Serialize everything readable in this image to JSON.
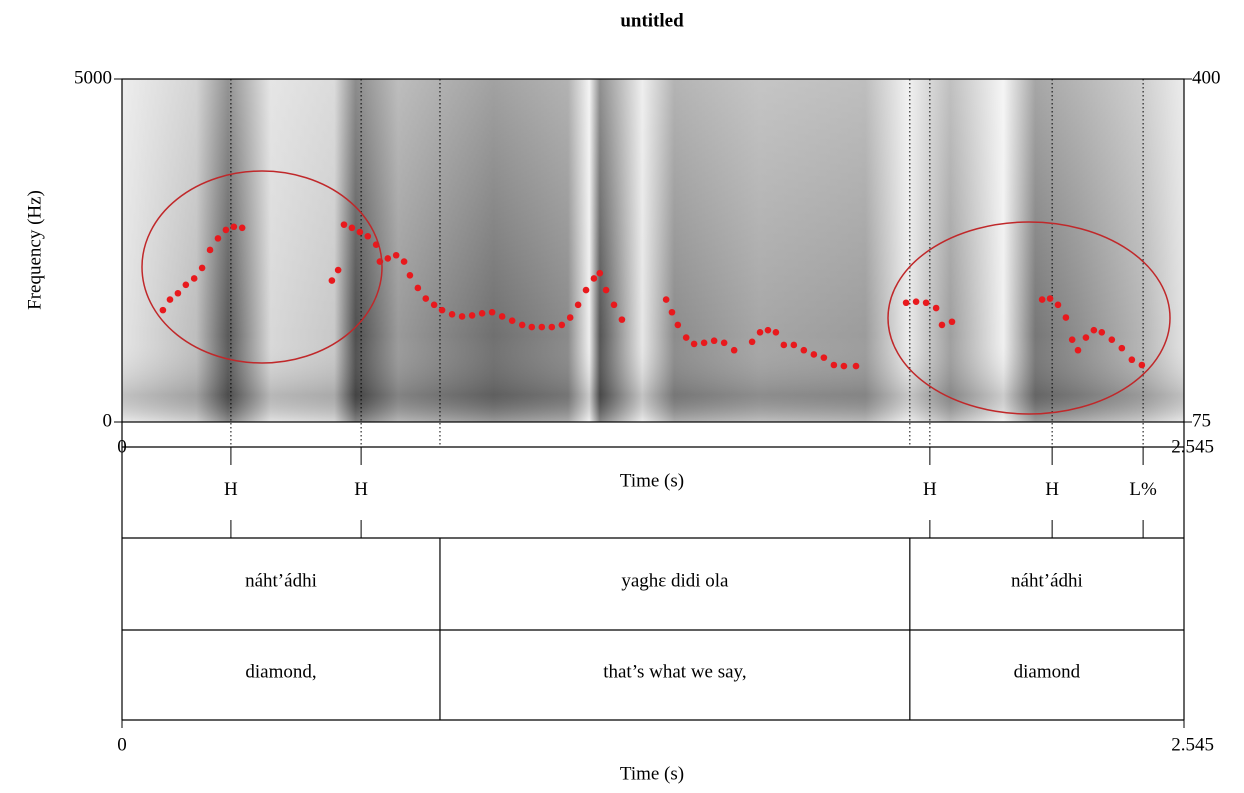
{
  "chart_data": {
    "type": "scatter",
    "title": "untitled",
    "ylabel": "Frequency (Hz)",
    "xlabel": "Time (s)",
    "xlim": [
      0,
      2.545
    ],
    "xticks": [
      0,
      2.545
    ],
    "ylim": [
      0,
      5000
    ],
    "yticks": [
      0,
      5000
    ],
    "y2lim": [
      75,
      400
    ],
    "y2ticks": [
      75,
      400
    ],
    "color": "#e8191d",
    "x": [
      0.098,
      0.115,
      0.134,
      0.153,
      0.173,
      0.192,
      0.211,
      0.23,
      0.249,
      0.268,
      0.288,
      0.503,
      0.518,
      0.532,
      0.551,
      0.57,
      0.589,
      0.609,
      0.618,
      0.637,
      0.657,
      0.676,
      0.69,
      0.709,
      0.728,
      0.748,
      0.767,
      0.791,
      0.815,
      0.839,
      0.863,
      0.887,
      0.911,
      0.935,
      0.959,
      0.982,
      1.006,
      1.03,
      1.054,
      1.074,
      1.093,
      1.112,
      1.131,
      1.145,
      1.16,
      1.179,
      1.198,
      1.304,
      1.318,
      1.332,
      1.352,
      1.371,
      1.395,
      1.419,
      1.443,
      1.467,
      1.51,
      1.529,
      1.548,
      1.567,
      1.586,
      1.61,
      1.634,
      1.658,
      1.682,
      1.706,
      1.73,
      1.759,
      1.879,
      1.903,
      1.927,
      1.951,
      1.965,
      1.989,
      2.205,
      2.224,
      2.243,
      2.262,
      2.277,
      2.291,
      2.31,
      2.329,
      2.348,
      2.372,
      2.396,
      2.42,
      2.444
    ],
    "values": [
      181,
      191,
      197,
      205,
      211,
      221,
      238,
      249,
      257,
      260,
      259,
      209,
      219,
      262,
      259,
      255,
      251,
      243,
      227,
      230,
      233,
      227,
      214,
      202,
      192,
      186,
      181,
      177,
      175,
      176,
      178,
      179,
      175,
      171,
      167,
      165,
      165,
      165,
      167,
      174,
      186,
      200,
      211,
      216,
      200,
      186,
      172,
      191,
      179,
      167,
      155,
      149,
      150,
      152,
      150,
      143,
      151,
      160,
      162,
      160,
      148,
      148,
      143,
      139,
      136,
      129,
      128,
      128,
      188,
      189,
      188,
      183,
      167,
      170,
      191,
      192,
      186,
      174,
      153,
      143,
      155,
      162,
      160,
      153,
      145,
      134,
      129
    ],
    "tiers": [
      {
        "points": [
          0.261,
          0.573,
          1.936,
          2.229,
          2.447
        ],
        "labels": [
          "H",
          "H",
          "H",
          "H",
          "L%"
        ]
      },
      {
        "boundaries": [
          0.762,
          1.888
        ],
        "labels": [
          "náht’ádhi",
          "yaghɛ didi ola",
          "náht’ádhi"
        ]
      },
      {
        "boundaries": [
          0.762,
          1.888
        ],
        "labels": [
          "diamond,",
          "that’s what we say,",
          "diamond"
        ]
      }
    ]
  }
}
